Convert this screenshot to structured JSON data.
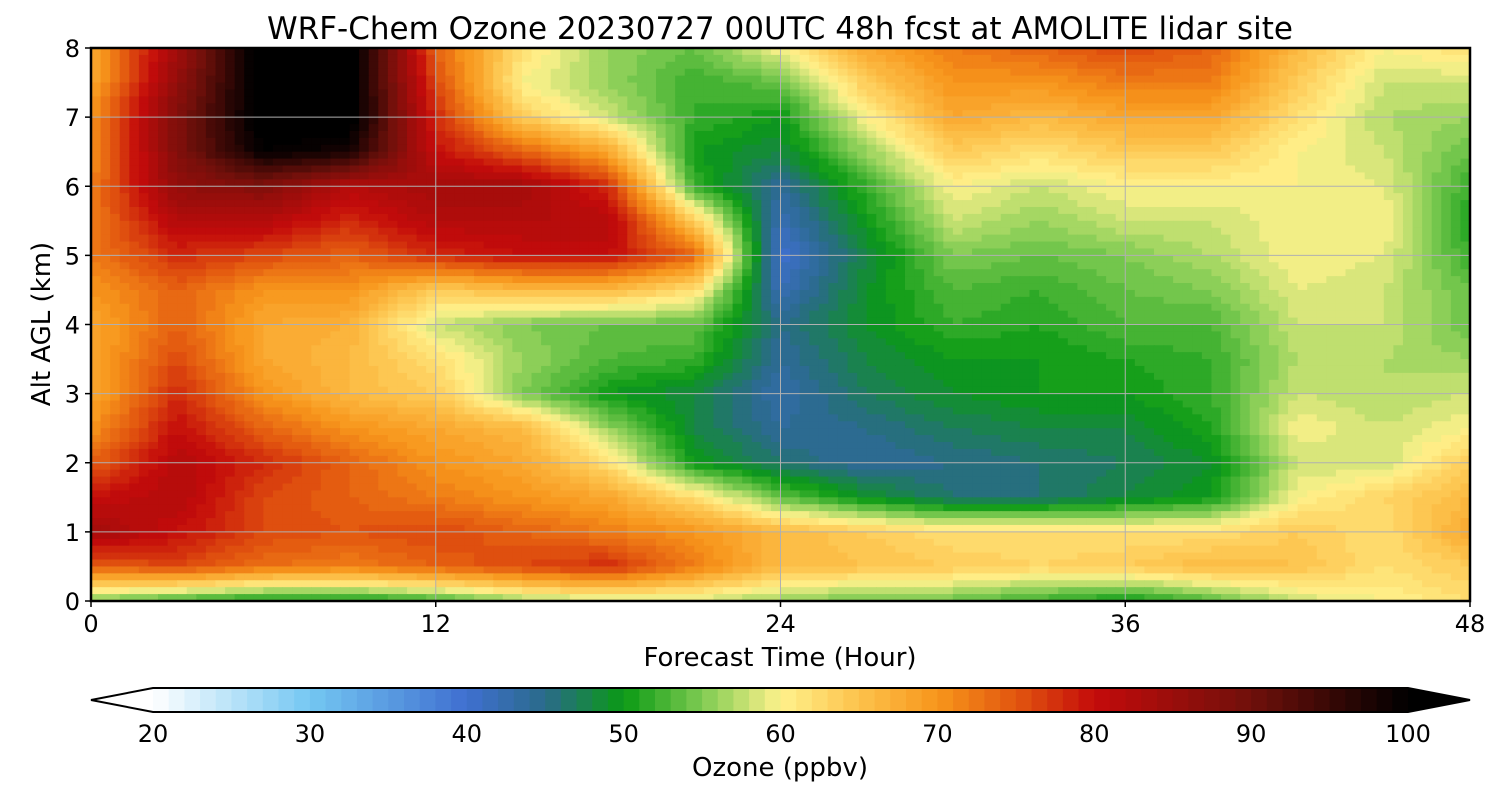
{
  "chart_data": {
    "type": "heatmap",
    "title": "WRF-Chem Ozone  20230727 00UTC 48h fcst at AMOLITE lidar site",
    "xlabel": "Forecast Time (Hour)",
    "ylabel": "Alt AGL (km)",
    "xlim": [
      0,
      48
    ],
    "ylim": [
      0,
      8
    ],
    "xticks": [
      "0",
      "12",
      "24",
      "36",
      "48"
    ],
    "yticks": [
      "0",
      "1",
      "2",
      "3",
      "4",
      "5",
      "6",
      "7",
      "8"
    ],
    "grid": true,
    "x": [
      0,
      3,
      6,
      9,
      12,
      15,
      18,
      21,
      24,
      27,
      30,
      33,
      36,
      39,
      42,
      45,
      48
    ],
    "y": [
      0,
      0.5,
      1,
      1.5,
      2,
      2.5,
      3,
      3.5,
      4,
      4.5,
      5,
      5.5,
      6,
      6.5,
      7,
      7.5,
      8
    ],
    "z": [
      [
        55,
        52,
        50,
        50,
        52,
        56,
        58,
        58,
        56,
        54,
        54,
        52,
        50,
        53,
        58,
        60,
        62
      ],
      [
        74,
        76,
        73,
        72,
        74,
        76,
        78,
        72,
        66,
        65,
        64,
        63,
        64,
        66,
        65,
        62,
        64
      ],
      [
        84,
        80,
        76,
        75,
        76,
        74,
        72,
        70,
        66,
        64,
        62,
        62,
        62,
        62,
        64,
        62,
        68
      ],
      [
        80,
        82,
        76,
        74,
        72,
        70,
        68,
        62,
        54,
        49,
        46,
        46,
        48,
        50,
        60,
        63,
        66
      ],
      [
        74,
        82,
        78,
        74,
        70,
        68,
        62,
        50,
        46,
        44,
        45,
        46,
        47,
        49,
        58,
        58,
        64
      ],
      [
        70,
        80,
        74,
        70,
        68,
        66,
        56,
        48,
        44,
        45,
        47,
        48,
        48,
        51,
        60,
        58,
        60
      ],
      [
        68,
        78,
        70,
        66,
        64,
        55,
        50,
        48,
        43,
        47,
        49,
        50,
        50,
        52,
        58,
        57,
        58
      ],
      [
        68,
        76,
        68,
        66,
        62,
        56,
        53,
        52,
        44,
        48,
        50,
        50,
        51,
        52,
        57,
        57,
        56
      ],
      [
        68,
        74,
        68,
        67,
        58,
        55,
        54,
        54,
        45,
        49,
        52,
        51,
        53,
        53,
        58,
        58,
        54
      ],
      [
        70,
        74,
        70,
        70,
        64,
        66,
        66,
        62,
        42,
        49,
        53,
        52,
        54,
        55,
        59,
        58,
        54
      ],
      [
        72,
        78,
        76,
        74,
        78,
        80,
        80,
        74,
        40,
        48,
        55,
        54,
        55,
        57,
        60,
        59,
        52
      ],
      [
        72,
        82,
        82,
        78,
        82,
        82,
        82,
        64,
        42,
        50,
        58,
        56,
        58,
        58,
        60,
        60,
        51
      ],
      [
        72,
        86,
        88,
        82,
        84,
        84,
        78,
        52,
        44,
        52,
        60,
        58,
        60,
        60,
        60,
        59,
        52
      ],
      [
        70,
        88,
        100,
        98,
        80,
        74,
        68,
        50,
        48,
        56,
        64,
        62,
        64,
        64,
        60,
        58,
        54
      ],
      [
        70,
        88,
        102,
        102,
        78,
        64,
        58,
        52,
        50,
        60,
        68,
        66,
        68,
        68,
        62,
        57,
        56
      ],
      [
        68,
        86,
        102,
        102,
        76,
        60,
        56,
        52,
        54,
        64,
        70,
        70,
        72,
        72,
        64,
        58,
        58
      ],
      [
        68,
        84,
        102,
        102,
        74,
        62,
        56,
        54,
        60,
        68,
        72,
        74,
        76,
        74,
        66,
        60,
        62
      ]
    ],
    "colorbar": {
      "label": "Ozone  (ppbv)",
      "min": 20,
      "max": 100,
      "step": 1,
      "extend": "both",
      "ticks": [
        "20",
        "30",
        "40",
        "50",
        "60",
        "70",
        "80",
        "90",
        "100"
      ],
      "stops": [
        {
          "v": 20,
          "c": "#ffffff"
        },
        {
          "v": 30,
          "c": "#74c7f2"
        },
        {
          "v": 40,
          "c": "#3f6fd0"
        },
        {
          "v": 45,
          "c": "#2a6a8a"
        },
        {
          "v": 50,
          "c": "#0a9a14"
        },
        {
          "v": 55,
          "c": "#7fcb52"
        },
        {
          "v": 60,
          "c": "#fff28c"
        },
        {
          "v": 65,
          "c": "#fdc24c"
        },
        {
          "v": 70,
          "c": "#f7961b"
        },
        {
          "v": 75,
          "c": "#e2560f"
        },
        {
          "v": 80,
          "c": "#c40b0b"
        },
        {
          "v": 90,
          "c": "#70100b"
        },
        {
          "v": 100,
          "c": "#000000"
        }
      ]
    }
  }
}
